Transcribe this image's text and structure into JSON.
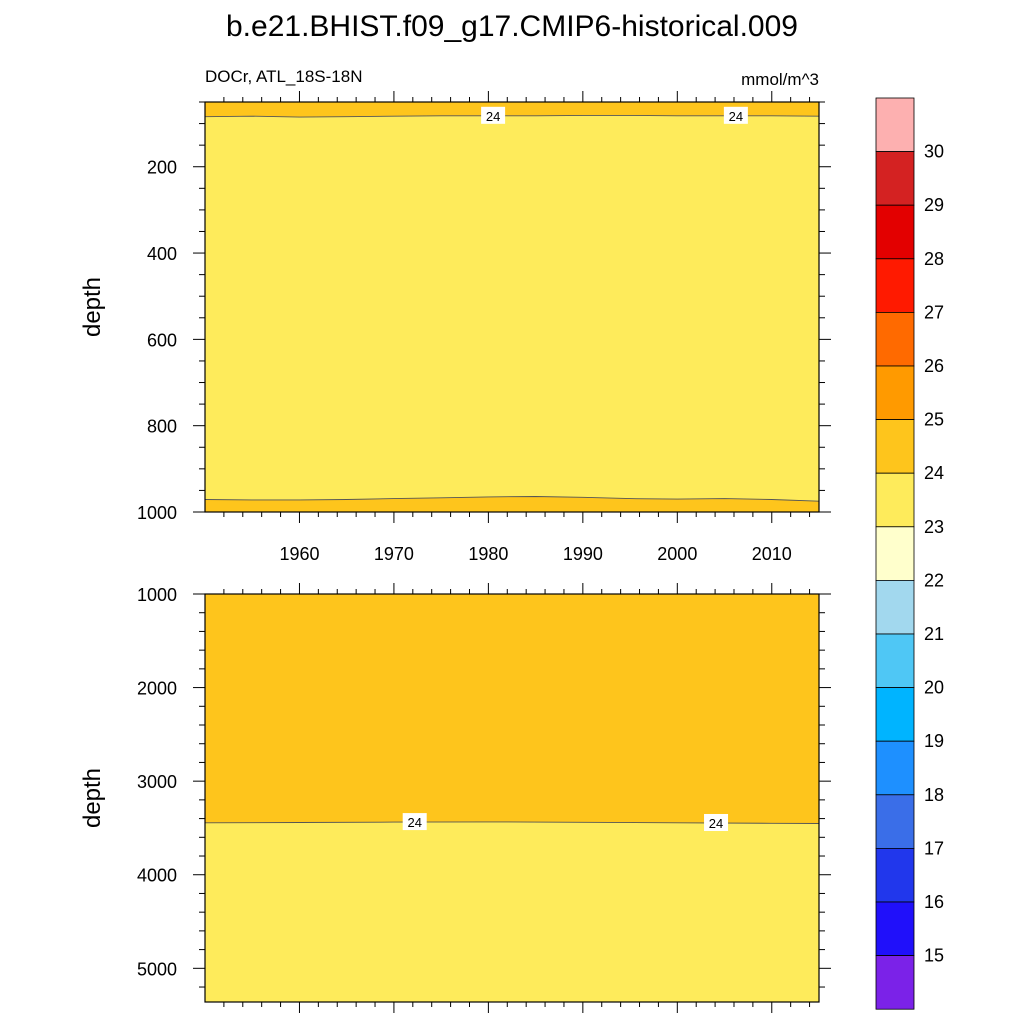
{
  "title": "b.e21.BHIST.f09_g17.CMIP6-historical.009",
  "subtitle_left": "DOCr, ATL_18S-18N",
  "subtitle_right": "mmol/m^3",
  "chart_data": [
    {
      "type": "heatmap",
      "panel": "upper",
      "ylabel": "depth",
      "xlim": [
        1950,
        2015
      ],
      "ylim": [
        1000,
        50
      ],
      "y_reversed": true,
      "x_ticks": [
        1960,
        1970,
        1980,
        1990,
        2000,
        2010
      ],
      "y_ticks": [
        200,
        400,
        600,
        800,
        1000
      ],
      "contour_level": 24,
      "contour_labels": [
        {
          "x": 1980.5,
          "label": "24"
        },
        {
          "x": 2006.2,
          "label": "24"
        }
      ],
      "regions": [
        {
          "band": "24-25",
          "color": "#FEC51C",
          "from_depth": 50,
          "to_depth": "upper_contour"
        },
        {
          "band": "23-24",
          "color": "#FEEB5B",
          "from_depth": "upper_contour",
          "to_depth": "lower_contour"
        },
        {
          "band": "24-25",
          "color": "#FEC51C",
          "from_depth": "lower_contour",
          "to_depth": 1000
        }
      ],
      "upper_contour": {
        "x": [
          1950,
          1955,
          1960,
          1965,
          1970,
          1975,
          1980,
          1985,
          1990,
          1995,
          2000,
          2005,
          2010,
          2015
        ],
        "depth": [
          84,
          83,
          85,
          84,
          83,
          82,
          82,
          82,
          81,
          81,
          82,
          82,
          82,
          83
        ]
      },
      "lower_contour": {
        "x": [
          1950,
          1955,
          1960,
          1965,
          1970,
          1975,
          1980,
          1985,
          1990,
          1995,
          2000,
          2005,
          2010,
          2015
        ],
        "depth": [
          971,
          972,
          972,
          971,
          969,
          967,
          965,
          964,
          966,
          969,
          970,
          969,
          971,
          975
        ]
      }
    },
    {
      "type": "heatmap",
      "panel": "lower",
      "ylabel": "depth",
      "xlim": [
        1950,
        2015
      ],
      "ylim": [
        5360,
        1000
      ],
      "y_reversed": true,
      "x_ticks": [
        1960,
        1970,
        1980,
        1990,
        2000,
        2010
      ],
      "y_ticks": [
        1000,
        2000,
        3000,
        4000,
        5000
      ],
      "contour_level": 24,
      "contour_labels": [
        {
          "x": 1972.2,
          "label": "24"
        },
        {
          "x": 2004.1,
          "label": "24"
        }
      ],
      "regions": [
        {
          "band": "24-25",
          "color": "#FEC51C",
          "from_depth": 1000,
          "to_depth": "contour"
        },
        {
          "band": "23-24",
          "color": "#FEEB5B",
          "from_depth": "contour",
          "to_depth": 5360
        }
      ],
      "contour": {
        "x": [
          1950,
          1960,
          1970,
          1980,
          1990,
          2000,
          2010,
          2015
        ],
        "depth": [
          3445,
          3442,
          3438,
          3435,
          3440,
          3445,
          3450,
          3452
        ]
      }
    }
  ],
  "colorbar": {
    "labels": [
      "15",
      "16",
      "17",
      "18",
      "19",
      "20",
      "21",
      "22",
      "23",
      "24",
      "25",
      "26",
      "27",
      "28",
      "29",
      "30"
    ],
    "colors": [
      "#FDB0B0",
      "#D42222",
      "#E30000",
      "#FF1A00",
      "#FF6A00",
      "#FF9A00",
      "#FEC51C",
      "#FEEB5B",
      "#FFFFCC",
      "#A2D8EE",
      "#4FC7F5",
      "#00B4FF",
      "#1E90FF",
      "#3A6EE8",
      "#2137EC",
      "#2010FA",
      "#7B22E8"
    ]
  }
}
